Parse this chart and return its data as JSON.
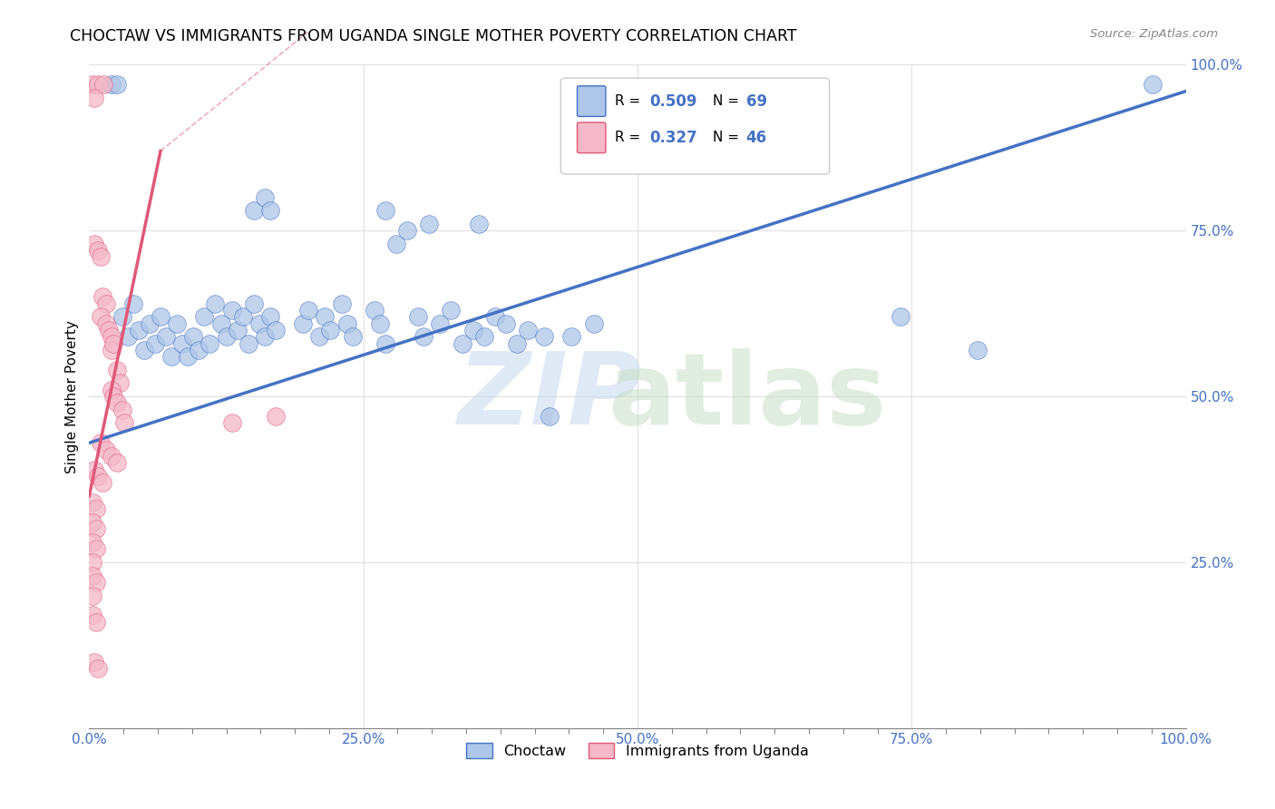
{
  "title": "CHOCTAW VS IMMIGRANTS FROM UGANDA SINGLE MOTHER POVERTY CORRELATION CHART",
  "source": "Source: ZipAtlas.com",
  "ylabel": "Single Mother Poverty",
  "xlim": [
    0,
    1.0
  ],
  "ylim": [
    0,
    1.0
  ],
  "xtick_labels": [
    "0.0%",
    "",
    "",
    "",
    "",
    "",
    "",
    "",
    "25.0%",
    "",
    "",
    "",
    "",
    "",
    "",
    "",
    "50.0%",
    "",
    "",
    "",
    "",
    "",
    "",
    "",
    "75.0%",
    "",
    "",
    "",
    "",
    "",
    "",
    "",
    "100.0%"
  ],
  "xtick_positions": [
    0.0,
    0.03125,
    0.0625,
    0.09375,
    0.125,
    0.15625,
    0.1875,
    0.21875,
    0.25,
    0.28125,
    0.3125,
    0.34375,
    0.375,
    0.40625,
    0.4375,
    0.46875,
    0.5,
    0.53125,
    0.5625,
    0.59375,
    0.625,
    0.65625,
    0.6875,
    0.71875,
    0.75,
    0.78125,
    0.8125,
    0.84375,
    0.875,
    0.90625,
    0.9375,
    0.96875,
    1.0
  ],
  "ytick_positions": [
    0.25,
    0.5,
    0.75,
    1.0
  ],
  "ytick_labels": [
    "25.0%",
    "50.0%",
    "75.0%",
    "100.0%"
  ],
  "choctaw_color": "#aec6e8",
  "uganda_color": "#f4b8c8",
  "trend_blue": "#4472c4",
  "trend_pink": "#e05878",
  "grid_color": "#e0e0e0",
  "watermark_zip_color": "#c8d8f0",
  "watermark_atlas_color": "#c8dfc8",
  "legend_r1": "0.509",
  "legend_n1": "69",
  "legend_r2": "0.327",
  "legend_n2": "46",
  "blue_trend_x0": 0.0,
  "blue_trend_y0": 0.43,
  "blue_trend_x1": 1.0,
  "blue_trend_y1": 0.96,
  "pink_trend_x0": 0.0,
  "pink_trend_y0": 0.35,
  "pink_trend_x1": 0.065,
  "pink_trend_y1": 0.87
}
